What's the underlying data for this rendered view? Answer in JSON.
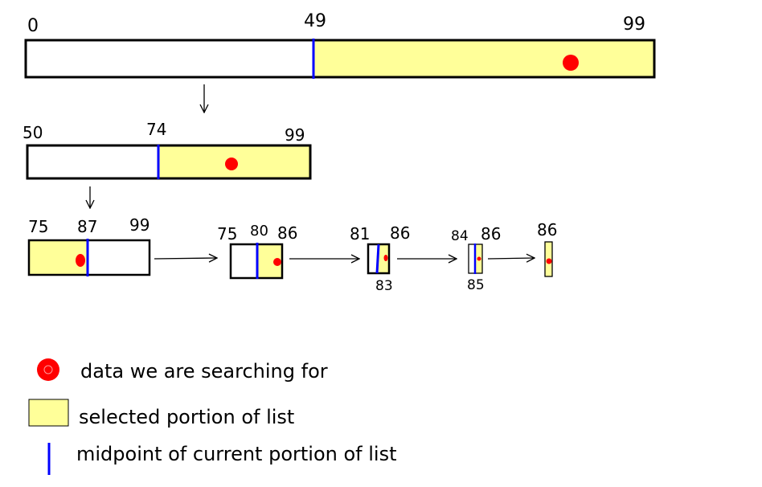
{
  "labels": {
    "r1": {
      "start": "0",
      "mid": "49",
      "end": "99"
    },
    "r2": {
      "start": "50",
      "mid": "74",
      "end": "99"
    },
    "r3": {
      "start": "75",
      "mid": "87",
      "end": "99"
    },
    "s4": {
      "start": "75",
      "mid": "80",
      "end": "86"
    },
    "s5": {
      "start": "81",
      "end": "86",
      "mid": "83"
    },
    "s6": {
      "start": "84",
      "end": "86",
      "mid": "85"
    },
    "s7": {
      "value": "86"
    }
  },
  "legend": {
    "target": "data we are searching for",
    "selected": "selected portion of list",
    "midpoint": "midpoint of current portion of list"
  },
  "colors": {
    "selected_fill": "#ffff99",
    "target": "#ff0000",
    "midpoint": "#0000ff",
    "outline": "#000000"
  }
}
